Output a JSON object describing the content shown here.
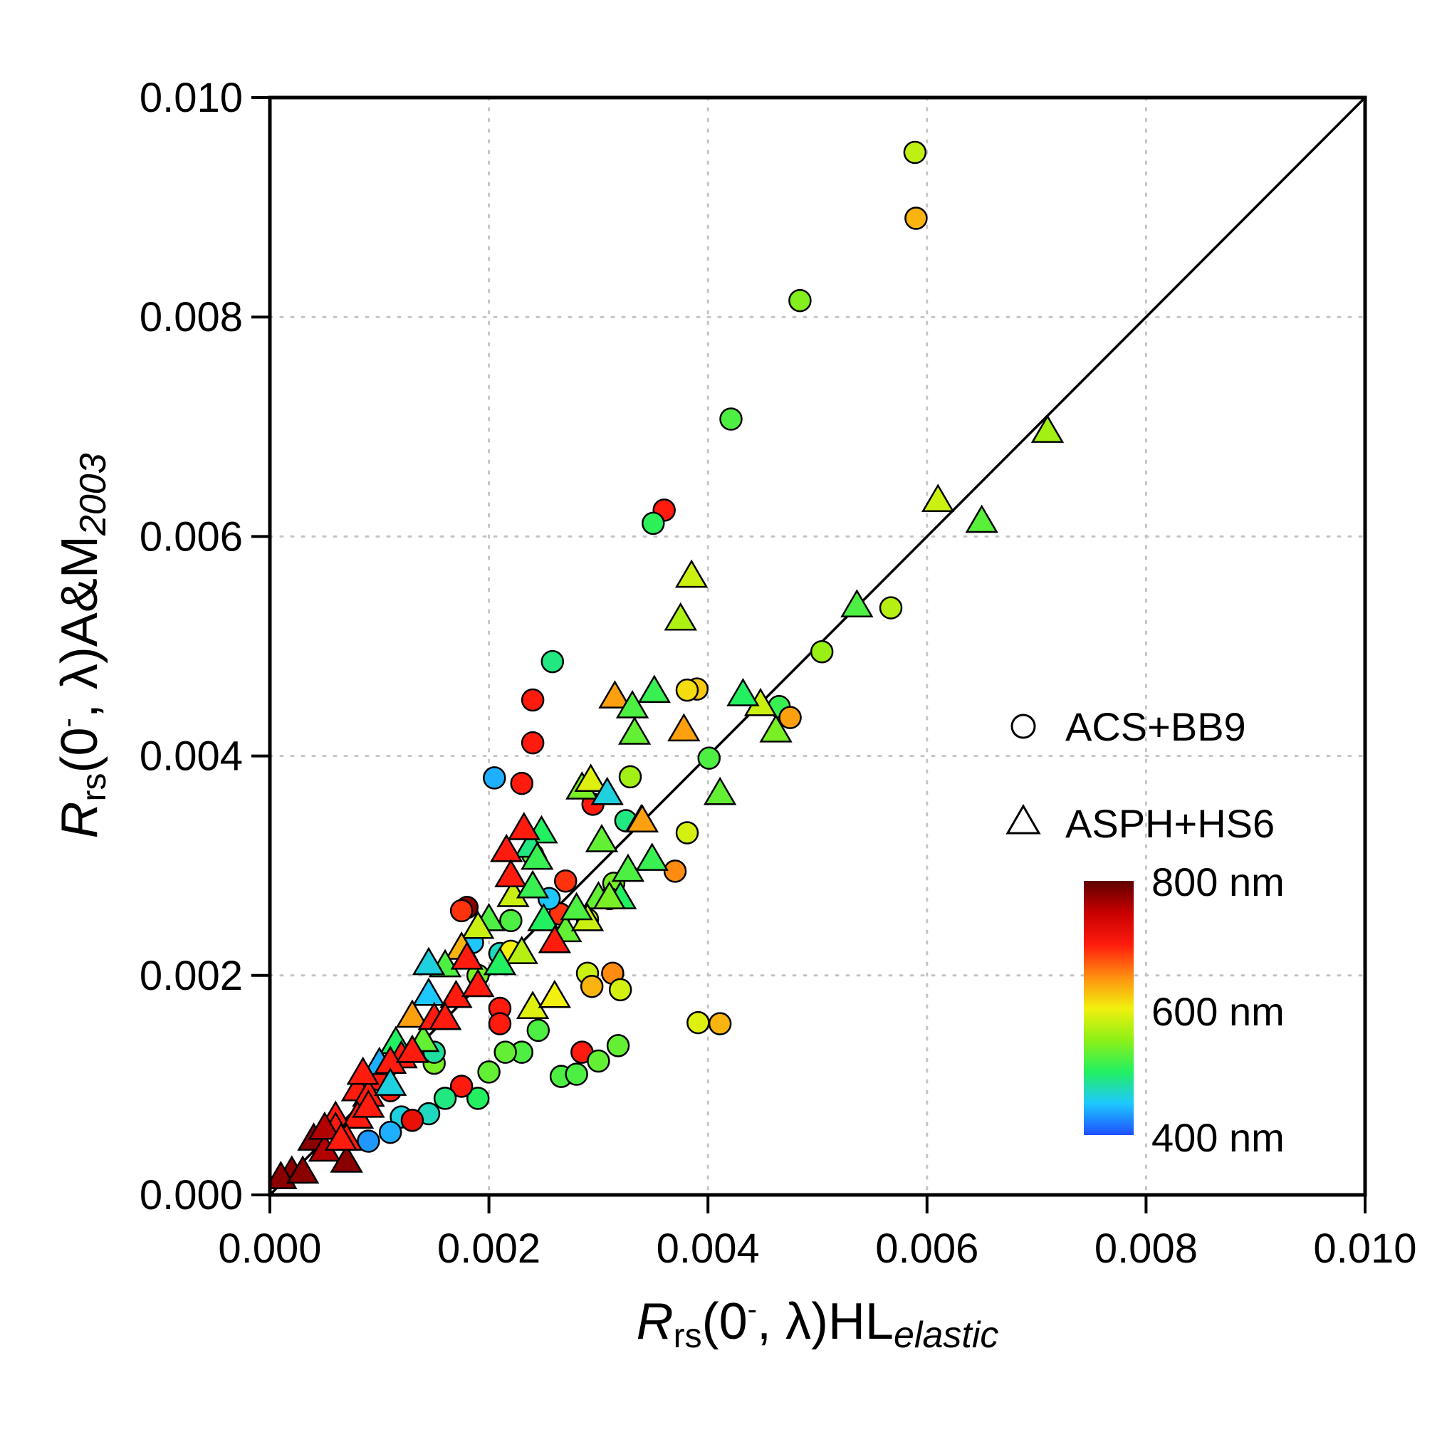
{
  "chart_data": {
    "type": "scatter",
    "title": "",
    "x_axis": {
      "title_parts": {
        "symbol": "R",
        "sub": "rs",
        "arg_open": "(0",
        "sup": "-",
        "arg_close": ", λ)HL",
        "tail": "elastic"
      },
      "range": [
        0,
        0.01
      ],
      "ticks": [
        0,
        0.002,
        0.004,
        0.006,
        0.008,
        0.01
      ],
      "tick_labels": [
        "0.000",
        "0.002",
        "0.004",
        "0.006",
        "0.008",
        "0.010"
      ]
    },
    "y_axis": {
      "title_parts": {
        "symbol": "R",
        "sub": "rs",
        "arg_open": "(0",
        "sup": "-",
        "arg_close": ", λ)A&M",
        "tail": "2003"
      },
      "range": [
        0,
        0.01
      ],
      "ticks": [
        0,
        0.002,
        0.004,
        0.006,
        0.008,
        0.01
      ],
      "tick_labels": [
        "0.000",
        "0.002",
        "0.004",
        "0.006",
        "0.008",
        "0.010"
      ]
    },
    "grid": "dotted",
    "reference_line": "1:1",
    "legend": {
      "placement": "right",
      "entries": [
        {
          "marker": "circle",
          "label": "ACS+BB9"
        },
        {
          "marker": "triangle",
          "label": "ASPH+HS6"
        }
      ]
    },
    "colorbar": {
      "variable": "wavelength",
      "range": [
        400,
        800
      ],
      "labels": [
        "800 nm",
        "600 nm",
        "400 nm"
      ],
      "stops": [
        "#1f4fff",
        "#1ec8ff",
        "#22f060",
        "#8ef016",
        "#f2f00e",
        "#ff8c10",
        "#ff1b0e",
        "#c80000",
        "#600000"
      ]
    },
    "series": [
      {
        "name": "ACS+BB9",
        "marker": "circle",
        "x": [
          0.00589,
          0.0059,
          0.00484,
          0.00421,
          0.0036,
          0.0035,
          0.00258,
          0.0024,
          0.0024,
          0.00205,
          0.00567,
          0.00504,
          0.00465,
          0.0039,
          0.00381,
          0.00475,
          0.00401,
          0.00329,
          0.00381,
          0.0037,
          0.00325,
          0.00314,
          0.00295,
          0.0027,
          0.0024,
          0.0023,
          0.0022,
          0.0021,
          0.0019,
          0.00185,
          0.0029,
          0.00294,
          0.00313,
          0.0032,
          0.00391,
          0.00411,
          0.00285,
          0.00266,
          0.003,
          0.00318,
          0.0028,
          0.00245,
          0.0023,
          0.00215,
          0.002,
          0.0021,
          0.0019,
          0.00175,
          0.0016,
          0.00145,
          0.0012,
          0.0011,
          0.0009,
          0.0013,
          0.0015,
          0.0011,
          0.001,
          0.0018,
          0.00265,
          0.0022,
          0.00175,
          0.00255,
          0.0031,
          0.0029,
          0.0021,
          0.0015
        ],
        "y": [
          0.0095,
          0.0089,
          0.00815,
          0.00707,
          0.00624,
          0.00612,
          0.00486,
          0.00451,
          0.00412,
          0.0038,
          0.00535,
          0.00495,
          0.00445,
          0.00461,
          0.0046,
          0.00435,
          0.00398,
          0.00381,
          0.0033,
          0.00295,
          0.00341,
          0.00284,
          0.00356,
          0.00286,
          0.0031,
          0.00375,
          0.0025,
          0.0022,
          0.002,
          0.0023,
          0.00202,
          0.0019,
          0.00202,
          0.00187,
          0.00157,
          0.00156,
          0.0013,
          0.00108,
          0.00122,
          0.00136,
          0.0011,
          0.0015,
          0.0013,
          0.0013,
          0.00112,
          0.0017,
          0.00088,
          0.00099,
          0.00088,
          0.00074,
          0.00071,
          0.00057,
          0.00049,
          0.00068,
          0.0012,
          0.00095,
          0.00105,
          0.00262,
          0.00256,
          0.00222,
          0.00259,
          0.0027,
          0.0027,
          0.00251,
          0.00156,
          0.0013
        ],
        "wavelength_nm": [
          575,
          630,
          545,
          520,
          700,
          505,
          490,
          700,
          700,
          440,
          570,
          555,
          510,
          620,
          610,
          640,
          520,
          560,
          585,
          650,
          490,
          540,
          700,
          690,
          530,
          700,
          520,
          470,
          540,
          450,
          580,
          630,
          650,
          585,
          590,
          630,
          700,
          520,
          530,
          530,
          520,
          520,
          520,
          530,
          530,
          700,
          500,
          700,
          490,
          470,
          460,
          440,
          430,
          720,
          540,
          700,
          700,
          780,
          690,
          600,
          690,
          450,
          690,
          570,
          700,
          480
        ]
      },
      {
        "name": "ASPH+HS6",
        "marker": "triangle",
        "x": [
          0.0071,
          0.0061,
          0.0065,
          0.00536,
          0.00385,
          0.00375,
          0.00448,
          0.00462,
          0.00432,
          0.00411,
          0.00351,
          0.00315,
          0.00331,
          0.00333,
          0.00378,
          0.00327,
          0.00349,
          0.00339,
          0.00303,
          0.00285,
          0.00293,
          0.00308,
          0.00248,
          0.00238,
          0.00244,
          0.00232,
          0.00216,
          0.00222,
          0.002,
          0.0019,
          0.00175,
          0.0016,
          0.00145,
          0.0013,
          0.00115,
          0.001,
          0.0008,
          0.0006,
          0.0004,
          0.0002,
          0.0001,
          0.0003,
          0.0005,
          0.0007,
          0.0012,
          0.0014,
          0.0017,
          0.0025,
          0.0027,
          0.003,
          0.0032,
          0.0029,
          0.0026,
          0.0023,
          0.0021,
          0.0019,
          0.0016,
          0.0013,
          0.0011,
          0.0009,
          0.0008,
          0.0006,
          0.0005,
          0.0007,
          0.0009,
          0.0011,
          0.0015,
          0.0018,
          0.0022,
          0.0024,
          0.0028,
          0.0031,
          0.0034,
          0.0024,
          0.0026,
          0.0019,
          0.0016,
          0.00145,
          0.0013,
          0.00085,
          0.00065
        ],
        "y": [
          0.00695,
          0.00632,
          0.00613,
          0.00536,
          0.00563,
          0.00524,
          0.00446,
          0.00422,
          0.00455,
          0.00365,
          0.00458,
          0.00453,
          0.00444,
          0.0042,
          0.00423,
          0.00295,
          0.00305,
          0.0034,
          0.00322,
          0.0037,
          0.00377,
          0.00365,
          0.0033,
          0.00317,
          0.00306,
          0.00333,
          0.00313,
          0.00272,
          0.0025,
          0.00243,
          0.00224,
          0.00208,
          0.00182,
          0.00162,
          0.00138,
          0.00119,
          0.00095,
          0.0007,
          0.0005,
          0.0002,
          0.00015,
          0.0002,
          0.0004,
          0.0003,
          0.00125,
          0.0014,
          0.0018,
          0.0025,
          0.0024,
          0.0027,
          0.0027,
          0.0025,
          0.0023,
          0.0022,
          0.0021,
          0.0019,
          0.0016,
          0.0013,
          0.0012,
          0.0009,
          0.0007,
          0.0006,
          0.0006,
          0.0005,
          0.0008,
          0.001,
          0.0016,
          0.00215,
          0.0029,
          0.0028,
          0.0026,
          0.0027,
          0.0034,
          0.0017,
          0.0018,
          0.0019,
          0.0016,
          0.0021,
          0.0013,
          0.0011,
          0.0005
        ],
        "wavelength_nm": [
          560,
          580,
          525,
          520,
          580,
          565,
          580,
          540,
          500,
          530,
          510,
          640,
          520,
          530,
          640,
          520,
          510,
          630,
          530,
          540,
          590,
          460,
          500,
          490,
          510,
          700,
          700,
          580,
          520,
          580,
          630,
          520,
          450,
          640,
          500,
          440,
          700,
          700,
          780,
          780,
          780,
          780,
          760,
          780,
          700,
          530,
          700,
          500,
          530,
          530,
          500,
          580,
          700,
          570,
          500,
          500,
          540,
          700,
          700,
          700,
          700,
          700,
          760,
          700,
          700,
          460,
          700,
          700,
          700,
          510,
          520,
          540,
          640,
          590,
          600,
          700,
          700,
          460,
          700,
          700,
          700
        ]
      }
    ]
  }
}
